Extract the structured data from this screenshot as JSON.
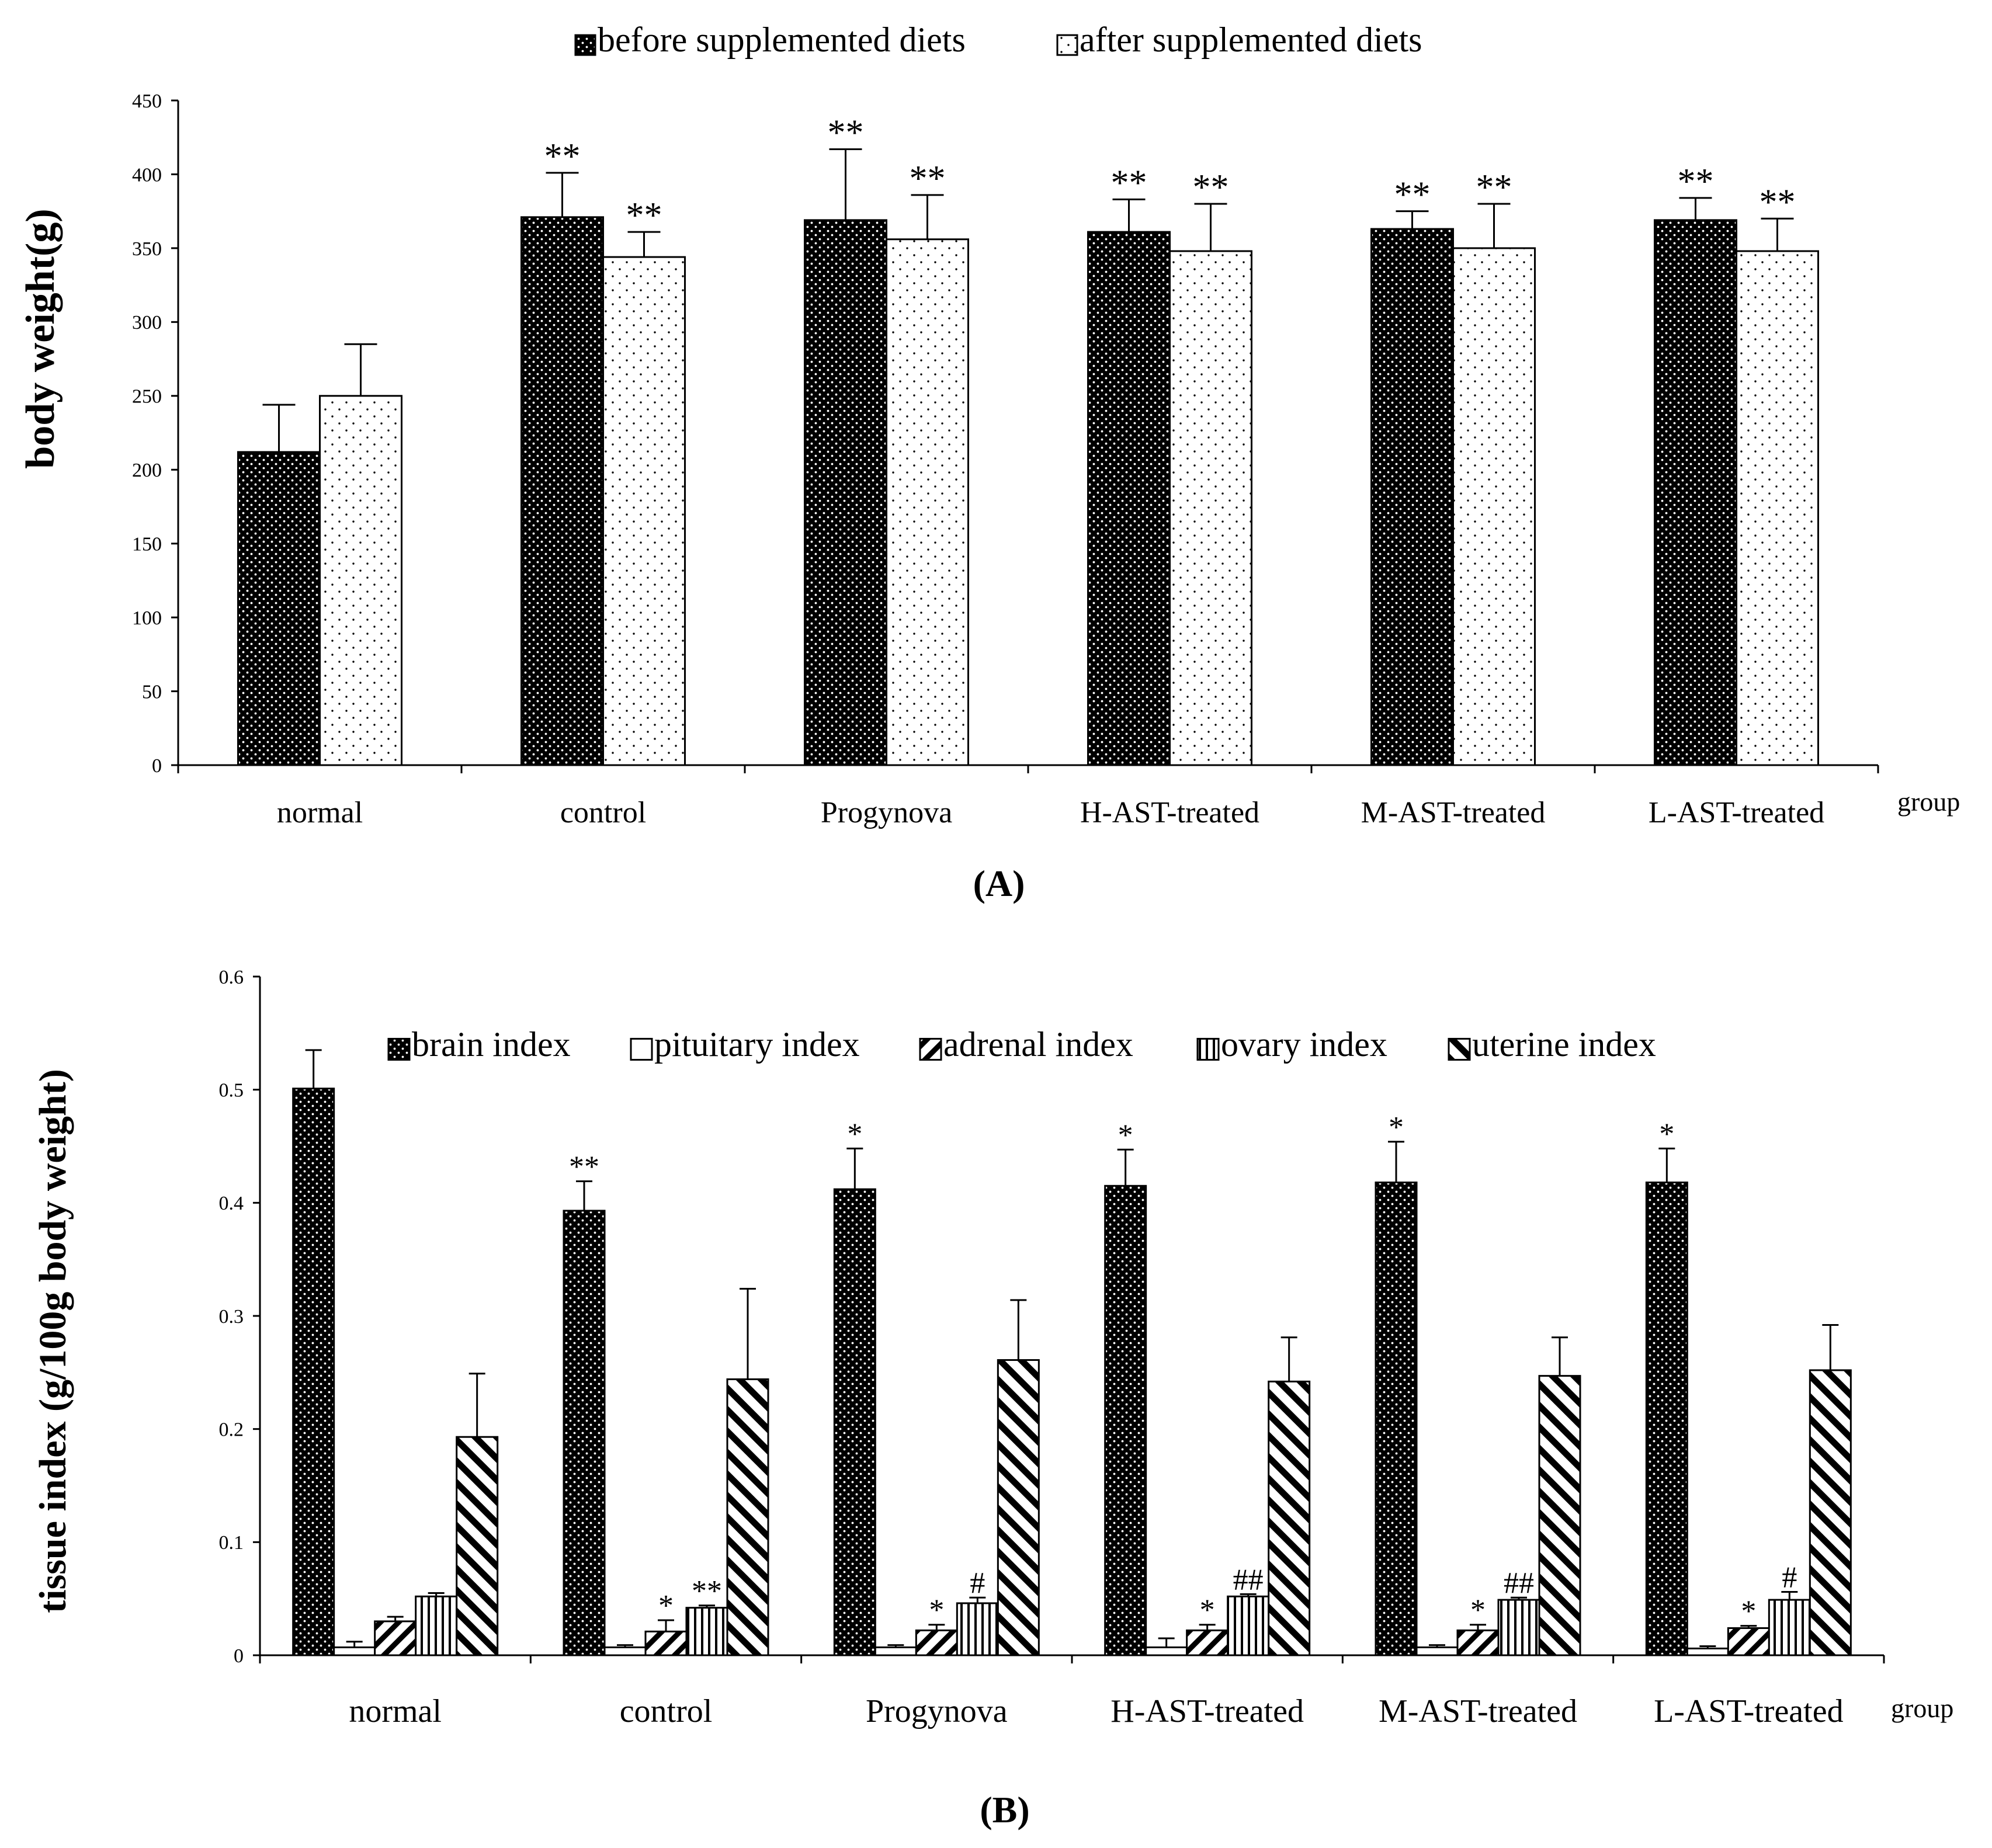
{
  "colors": {
    "axis": "#000000",
    "dark_fill": "#000000",
    "light_fill": "#ffffff",
    "dot_on_dark": "#ffffff",
    "dot_on_light": "#000000",
    "background": "#ffffff"
  },
  "chart_data": [
    {
      "type": "bar",
      "panel_label": "(A)",
      "panel_letter": "A",
      "title": "",
      "xlabel": "group",
      "ylabel": "body weight(g)",
      "ylim": [
        0,
        450
      ],
      "yticks": [
        0,
        50,
        100,
        150,
        200,
        250,
        300,
        350,
        400,
        450
      ],
      "ytick_labels": [
        "0",
        "50",
        "100",
        "150",
        "200",
        "250",
        "300",
        "350",
        "400",
        "450"
      ],
      "legend_position": "top-center",
      "categories": [
        "normal",
        "control",
        "Progynova",
        "H-AST-treated",
        "M-AST-treated",
        "L-AST-treated"
      ],
      "series": [
        {
          "name": "before supplemented diets",
          "pattern": "dots-on-black",
          "values": [
            212,
            371,
            369,
            361,
            363,
            369
          ],
          "errors": [
            32,
            30,
            48,
            22,
            12,
            15
          ],
          "annotations": [
            "",
            "**",
            "**",
            "**",
            "**",
            "**"
          ]
        },
        {
          "name": "after supplemented diets",
          "pattern": "dots-on-white",
          "values": [
            250,
            344,
            356,
            348,
            350,
            348
          ],
          "errors": [
            35,
            17,
            30,
            32,
            30,
            22
          ],
          "annotations": [
            "",
            "**",
            "**",
            "**",
            "**",
            "**"
          ]
        }
      ]
    },
    {
      "type": "bar",
      "panel_label": "(B)",
      "panel_letter": "B",
      "title": "",
      "xlabel": "group",
      "ylabel": "tissue index (g/100g body weight)",
      "ylim": [
        0,
        0.6
      ],
      "yticks": [
        0,
        0.1,
        0.2,
        0.3,
        0.4,
        0.5,
        0.6
      ],
      "ytick_labels": [
        "0",
        "0.1",
        "0.2",
        "0.3",
        "0.4",
        "0.5",
        "0.6"
      ],
      "legend_position": "top-center",
      "categories": [
        "normal",
        "control",
        "Progynova",
        "H-AST-treated",
        "M-AST-treated",
        "L-AST-treated"
      ],
      "series": [
        {
          "name": "brain index",
          "pattern": "dots-on-black",
          "values": [
            0.501,
            0.393,
            0.412,
            0.415,
            0.418,
            0.418
          ],
          "errors": [
            0.034,
            0.026,
            0.036,
            0.032,
            0.036,
            0.03
          ],
          "annotations": [
            "",
            "**",
            "*",
            "*",
            "*",
            "*"
          ]
        },
        {
          "name": "pituitary index",
          "pattern": "white",
          "values": [
            0.007,
            0.007,
            0.007,
            0.007,
            0.007,
            0.006
          ],
          "errors": [
            0.005,
            0.002,
            0.002,
            0.008,
            0.002,
            0.002
          ],
          "annotations": [
            "",
            "",
            "",
            "",
            "",
            ""
          ]
        },
        {
          "name": "adrenal index",
          "pattern": "forward-diagonal",
          "values": [
            0.03,
            0.021,
            0.022,
            0.022,
            0.022,
            0.024
          ],
          "errors": [
            0.004,
            0.01,
            0.005,
            0.005,
            0.005,
            0.002
          ],
          "annotations": [
            "",
            "*",
            "*",
            "*",
            "*",
            "*"
          ]
        },
        {
          "name": "ovary index",
          "pattern": "vertical-lines",
          "values": [
            0.052,
            0.042,
            0.046,
            0.052,
            0.049,
            0.049
          ],
          "errors": [
            0.003,
            0.002,
            0.005,
            0.002,
            0.002,
            0.007
          ],
          "annotations": [
            "",
            "**",
            "#",
            "##",
            "##",
            "#"
          ]
        },
        {
          "name": "uterine index",
          "pattern": "back-diagonal",
          "values": [
            0.193,
            0.244,
            0.261,
            0.242,
            0.247,
            0.252
          ],
          "errors": [
            0.056,
            0.08,
            0.053,
            0.039,
            0.034,
            0.04
          ],
          "annotations": [
            "",
            "",
            "",
            "",
            "",
            ""
          ]
        }
      ]
    }
  ]
}
